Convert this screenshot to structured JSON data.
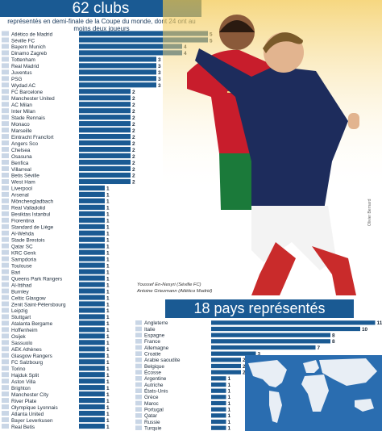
{
  "title": "62 clubs",
  "subtitle": "représentés en demi-finale de la Coupe du monde, dont 24 ont au moins deux joueurs",
  "photo_caption": {
    "line1": "Youssef En-Nesyri (Séville FC)",
    "line2": "Antoine Griezmann (Atlético Madrid)"
  },
  "photo_credit": "Olivier Bernard",
  "countries_title": "18 pays représentés",
  "colors": {
    "bar": "#1a5a93",
    "title_bg": "#1a5a93",
    "map_land": "#e8eef5",
    "map_water": "#2a6db0"
  },
  "chart_data": [
    {
      "type": "bar",
      "orientation": "horizontal",
      "title": "62 clubs",
      "categories": [
        "Atlético de Madrid",
        "Séville FC",
        "Bayern Munich",
        "Dinamo Zagreb",
        "Tottenham",
        "Real Madrid",
        "Juventus",
        "PSG",
        "Wydad AC",
        "FC Barcelone",
        "Manchester United",
        "AC Milan",
        "Inter Milan",
        "Stade Rennais",
        "Monaco",
        "Marseille",
        "Eintracht Francfort",
        "Angers Sco",
        "Chelsea",
        "Osasuna",
        "Benfica",
        "Villarreal",
        "Betis Séville",
        "West Ham",
        "Liverpool",
        "Arsenal",
        "Mönchengladbach",
        "Real Valladolid",
        "Besiktas Istanbul",
        "Fiorentina",
        "Standard de Liège",
        "Al-Wehda",
        "Stade Brestois",
        "Qatar SC",
        "KRC Genk",
        "Sampdoria",
        "Toulouse",
        "Bari",
        "Queens Park Rangers",
        "Al-Ittihad",
        "Burnley",
        "Celtic Glasgow",
        "Zenit Saint-Pétersbourg",
        "Leipzig",
        "Stuttgart",
        "Atalanta Bergame",
        "Hoffenheim",
        "Osijek",
        "Sassuolo",
        "AEK Athènes",
        "Glasgow Rangers",
        "FC Salzbourg",
        "Torino",
        "Hajduk Split",
        "Aston Villa",
        "Brighton",
        "Manchester City",
        "River Plate",
        "Olympique Lyonnais",
        "Atlanta United",
        "Bayer Leverkusen",
        "Real Betis"
      ],
      "values": [
        5,
        5,
        4,
        4,
        3,
        3,
        3,
        3,
        3,
        2,
        2,
        2,
        2,
        2,
        2,
        2,
        2,
        2,
        2,
        2,
        2,
        2,
        2,
        2,
        1,
        1,
        1,
        1,
        1,
        1,
        1,
        1,
        1,
        1,
        1,
        1,
        1,
        1,
        1,
        1,
        1,
        1,
        1,
        1,
        1,
        1,
        1,
        1,
        1,
        1,
        1,
        1,
        1,
        1,
        1,
        1,
        1,
        1,
        1,
        1,
        1,
        1
      ]
    },
    {
      "type": "bar",
      "orientation": "horizontal",
      "title": "18 pays représentés",
      "categories": [
        "Angleterre",
        "Italie",
        "Espagne",
        "France",
        "Allemagne",
        "Croatie",
        "Arabie saoudite",
        "Belgique",
        "Écosse",
        "Argentine",
        "Autriche",
        "États-Unis",
        "Grèce",
        "Maroc",
        "Portugal",
        "Qatar",
        "Russie",
        "Turquie"
      ],
      "values": [
        11,
        10,
        8,
        8,
        7,
        3,
        2,
        2,
        2,
        1,
        1,
        1,
        1,
        1,
        1,
        1,
        1,
        1
      ]
    }
  ]
}
